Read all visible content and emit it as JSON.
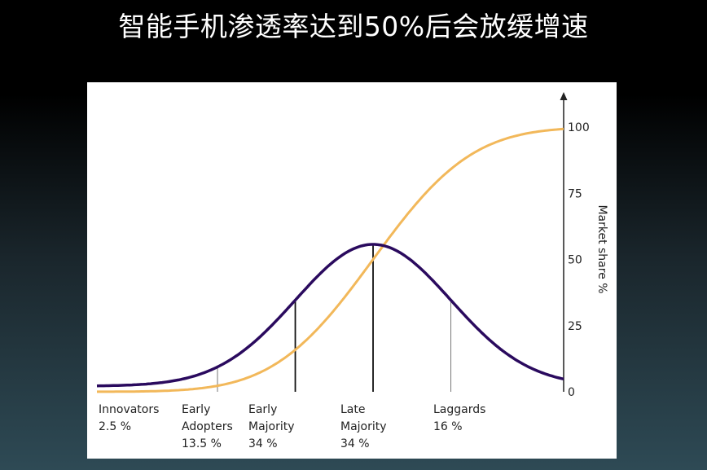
{
  "slide": {
    "title": "智能手机渗透率达到50%后会放缓增速"
  },
  "chart_data": {
    "type": "line",
    "ylabel": "Market share %",
    "y_ticks": [
      "0",
      "25",
      "50",
      "75",
      "100"
    ],
    "ylim": [
      0,
      100
    ],
    "segment_boundaries_sd": [
      -2,
      -1,
      0,
      1
    ],
    "segments": [
      {
        "lines": [
          "Innovators",
          "2.5 %"
        ],
        "share": 2.5
      },
      {
        "lines": [
          "Early",
          "Adopters",
          "13.5 %"
        ],
        "share": 13.5
      },
      {
        "lines": [
          "Early",
          "Majority",
          "34 %"
        ],
        "share": 34
      },
      {
        "lines": [
          "Late",
          "Majority",
          "34 %"
        ],
        "share": 34
      },
      {
        "lines": [
          "Laggards",
          "16 %"
        ],
        "share": 16
      }
    ],
    "series": [
      {
        "kind": "adoption_bell",
        "color": "#2a0a5e"
      },
      {
        "kind": "cumulative_share",
        "color": "#f2b85a"
      }
    ]
  }
}
